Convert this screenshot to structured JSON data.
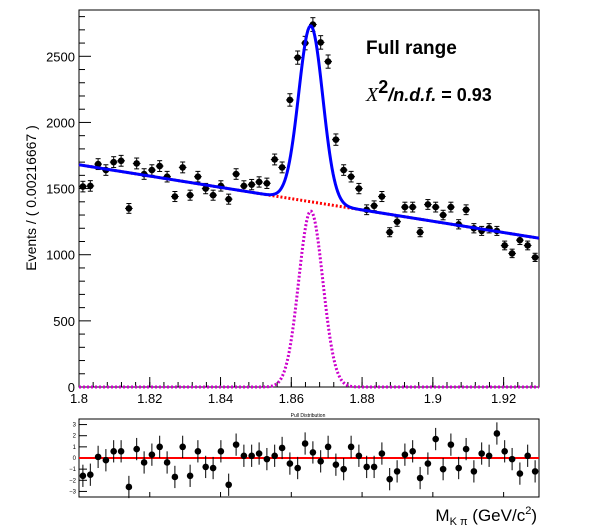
{
  "chart_data": [
    {
      "type": "scatter",
      "title": "",
      "annotations": {
        "range_label": "Full range",
        "chi2_label": "X",
        "chi2_sup": "2",
        "chi2_ndf": "/n.d.f.",
        "chi2_value": " = 0.93"
      },
      "xlabel_main": "M",
      "xlabel_sub": "K π",
      "xlabel_units": " (GeV/c",
      "xlabel_units_sup": "2",
      "xlabel_close": ")",
      "ylabel": "Events / ( 0.00216667 )",
      "xlim": [
        1.8,
        1.93
      ],
      "ylim": [
        0,
        2850
      ],
      "x_ticks": [
        1.8,
        1.82,
        1.84,
        1.86,
        1.88,
        1.9,
        1.92
      ],
      "x_tick_labels": [
        "1.8",
        "1.82",
        "1.84",
        "1.86",
        "1.88",
        "1.9",
        "1.92"
      ],
      "y_ticks": [
        0,
        500,
        1000,
        1500,
        2000,
        2500
      ],
      "y_tick_labels": [
        "0",
        "500",
        "1000",
        "1500",
        "2000",
        "2500"
      ],
      "grid": false,
      "bin_width": 0.00216667,
      "series": [
        {
          "kind": "data-points",
          "color": "#000000",
          "x": [
            1.8011,
            1.8032,
            1.8054,
            1.8076,
            1.8098,
            1.8119,
            1.8141,
            1.8163,
            1.8184,
            1.8206,
            1.8228,
            1.8249,
            1.8271,
            1.8293,
            1.8314,
            1.8336,
            1.8358,
            1.8379,
            1.8401,
            1.8423,
            1.8444,
            1.8466,
            1.8488,
            1.8509,
            1.8531,
            1.8553,
            1.8574,
            1.8596,
            1.8618,
            1.8639,
            1.8661,
            1.8683,
            1.8704,
            1.8726,
            1.8748,
            1.8769,
            1.8791,
            1.8813,
            1.8834,
            1.8856,
            1.8878,
            1.8899,
            1.8921,
            1.8943,
            1.8964,
            1.8986,
            1.9008,
            1.9029,
            1.9051,
            1.9073,
            1.9094,
            1.9116,
            1.9138,
            1.9159,
            1.9181,
            1.9203,
            1.9224,
            1.9246,
            1.9268,
            1.9289
          ],
          "y": [
            1515,
            1520,
            1685,
            1640,
            1700,
            1710,
            1350,
            1690,
            1610,
            1640,
            1670,
            1590,
            1440,
            1660,
            1450,
            1590,
            1500,
            1450,
            1520,
            1420,
            1610,
            1520,
            1530,
            1550,
            1540,
            1720,
            1660,
            2170,
            2490,
            2600,
            2740,
            2605,
            2460,
            1870,
            1640,
            1590,
            1500,
            1340,
            1370,
            1440,
            1170,
            1250,
            1360,
            1360,
            1170,
            1380,
            1360,
            1300,
            1360,
            1230,
            1340,
            1200,
            1180,
            1200,
            1180,
            1070,
            1010,
            1110,
            1070,
            980
          ],
          "yerr": [
            40,
            40,
            41,
            40,
            41,
            41,
            37,
            41,
            40,
            40,
            41,
            40,
            38,
            41,
            38,
            40,
            39,
            38,
            39,
            38,
            40,
            39,
            39,
            39,
            39,
            41,
            41,
            47,
            50,
            51,
            52,
            51,
            50,
            43,
            40,
            40,
            39,
            37,
            37,
            38,
            34,
            35,
            37,
            37,
            34,
            37,
            37,
            36,
            37,
            35,
            37,
            35,
            34,
            35,
            34,
            33,
            32,
            33,
            33,
            31
          ]
        },
        {
          "kind": "fit-total",
          "color": "#0000ff",
          "function": "background + gaussian signal",
          "background_at_xmin": 1680,
          "background_at_xmax": 1125,
          "signal_mean": 1.8655,
          "signal_sigma": 0.0034,
          "signal_peak": 1330
        },
        {
          "kind": "background",
          "color": "#ff0000",
          "style": "dotted"
        },
        {
          "kind": "signal",
          "color": "#cc00cc",
          "style": "dotted"
        }
      ]
    },
    {
      "type": "scatter",
      "title": "Pull Distribution",
      "xlim": [
        1.8,
        1.93
      ],
      "ylim": [
        -3.5,
        3.5
      ],
      "y_ticks": [
        -3,
        -2,
        -1,
        0,
        1,
        2,
        3
      ],
      "y_tick_labels": [
        "−3",
        "−2",
        "−1",
        "0",
        "1",
        "2",
        "3"
      ],
      "reference_line": {
        "y": 0,
        "color": "#ff0000"
      },
      "series": [
        {
          "kind": "pulls",
          "color": "#000000",
          "y": [
            -1.6,
            -1.5,
            0.1,
            -0.2,
            0.6,
            0.6,
            -2.6,
            0.8,
            -0.4,
            0.3,
            1.0,
            -0.4,
            -1.7,
            1.0,
            -1.6,
            0.6,
            -0.8,
            -0.9,
            0.6,
            -2.4,
            1.2,
            0.2,
            0.2,
            0.4,
            -0.1,
            0.2,
            0.9,
            -0.5,
            -0.9,
            1.3,
            0.5,
            -0.3,
            1.0,
            -0.6,
            -1.0,
            1.0,
            0.2,
            -0.8,
            -0.8,
            0.4,
            -1.9,
            -1.2,
            0.3,
            0.6,
            -1.8,
            -0.5,
            1.7,
            -1.0,
            1.2,
            -0.9,
            0.8,
            -1.2,
            0.4,
            0.2,
            2.2,
            0.6,
            -0.1,
            -1.4,
            0.2,
            -1.2
          ],
          "yerr": 1.0
        }
      ]
    }
  ]
}
